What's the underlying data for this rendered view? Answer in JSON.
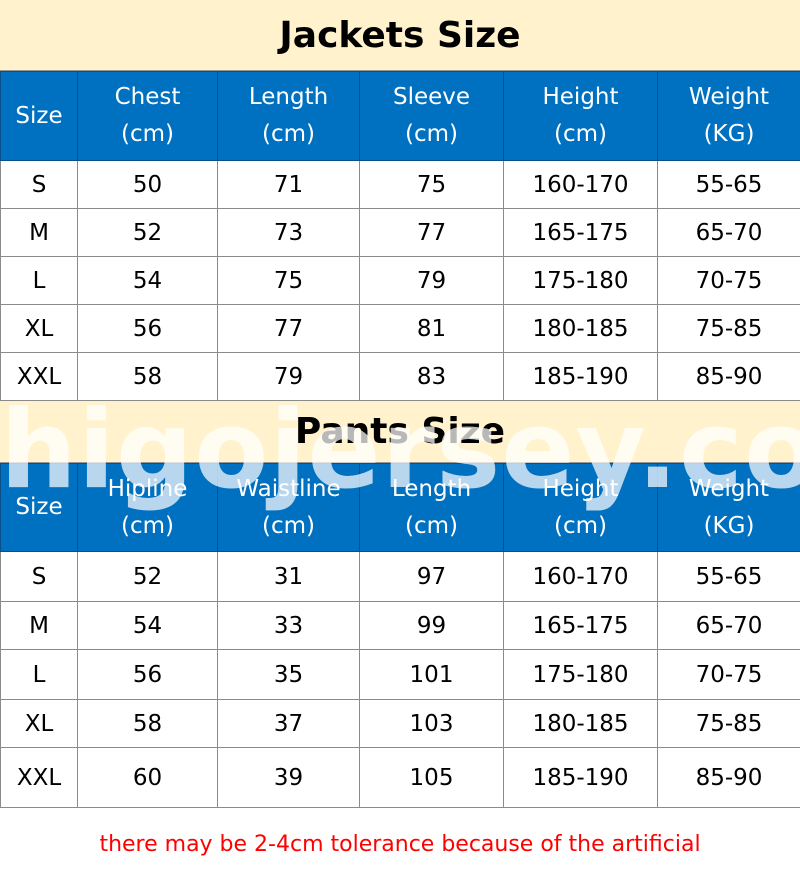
{
  "jackets": {
    "title": "Jackets Size",
    "headers": [
      [
        "Size",
        ""
      ],
      [
        "Chest",
        "(cm)"
      ],
      [
        "Length",
        "(cm)"
      ],
      [
        "Sleeve",
        "(cm)"
      ],
      [
        "Height",
        "(cm)"
      ],
      [
        "Weight",
        "(KG)"
      ]
    ],
    "rows": [
      [
        "S",
        "50",
        "71",
        "75",
        "160-170",
        "55-65"
      ],
      [
        "M",
        "52",
        "73",
        "77",
        "165-175",
        "65-70"
      ],
      [
        "L",
        "54",
        "75",
        "79",
        "175-180",
        "70-75"
      ],
      [
        "XL",
        "56",
        "77",
        "81",
        "180-185",
        "75-85"
      ],
      [
        "XXL",
        "58",
        "79",
        "83",
        "185-190",
        "85-90"
      ]
    ]
  },
  "pants": {
    "title": "Pants Size",
    "headers": [
      [
        "Size",
        ""
      ],
      [
        "Hipline",
        "(cm)"
      ],
      [
        "Waistline",
        "(cm)"
      ],
      [
        "Length",
        "(cm)"
      ],
      [
        "Height",
        "(cm)"
      ],
      [
        "Weight",
        "(KG)"
      ]
    ],
    "rows": [
      [
        "S",
        "52",
        "31",
        "97",
        "160-170",
        "55-65"
      ],
      [
        "M",
        "54",
        "33",
        "99",
        "165-175",
        "65-70"
      ],
      [
        "L",
        "56",
        "35",
        "101",
        "175-180",
        "70-75"
      ],
      [
        "XL",
        "58",
        "37",
        "103",
        "180-185",
        "75-85"
      ],
      [
        "XXL",
        "60",
        "39",
        "105",
        "185-190",
        "85-90"
      ]
    ]
  },
  "footer_note": "there may be 2-4cm tolerance because of the artificial",
  "watermark": "higojersey.com",
  "colors": {
    "header_bg": "#0070c0",
    "title_bg": "#fff2cc",
    "note": "#ff0000"
  }
}
